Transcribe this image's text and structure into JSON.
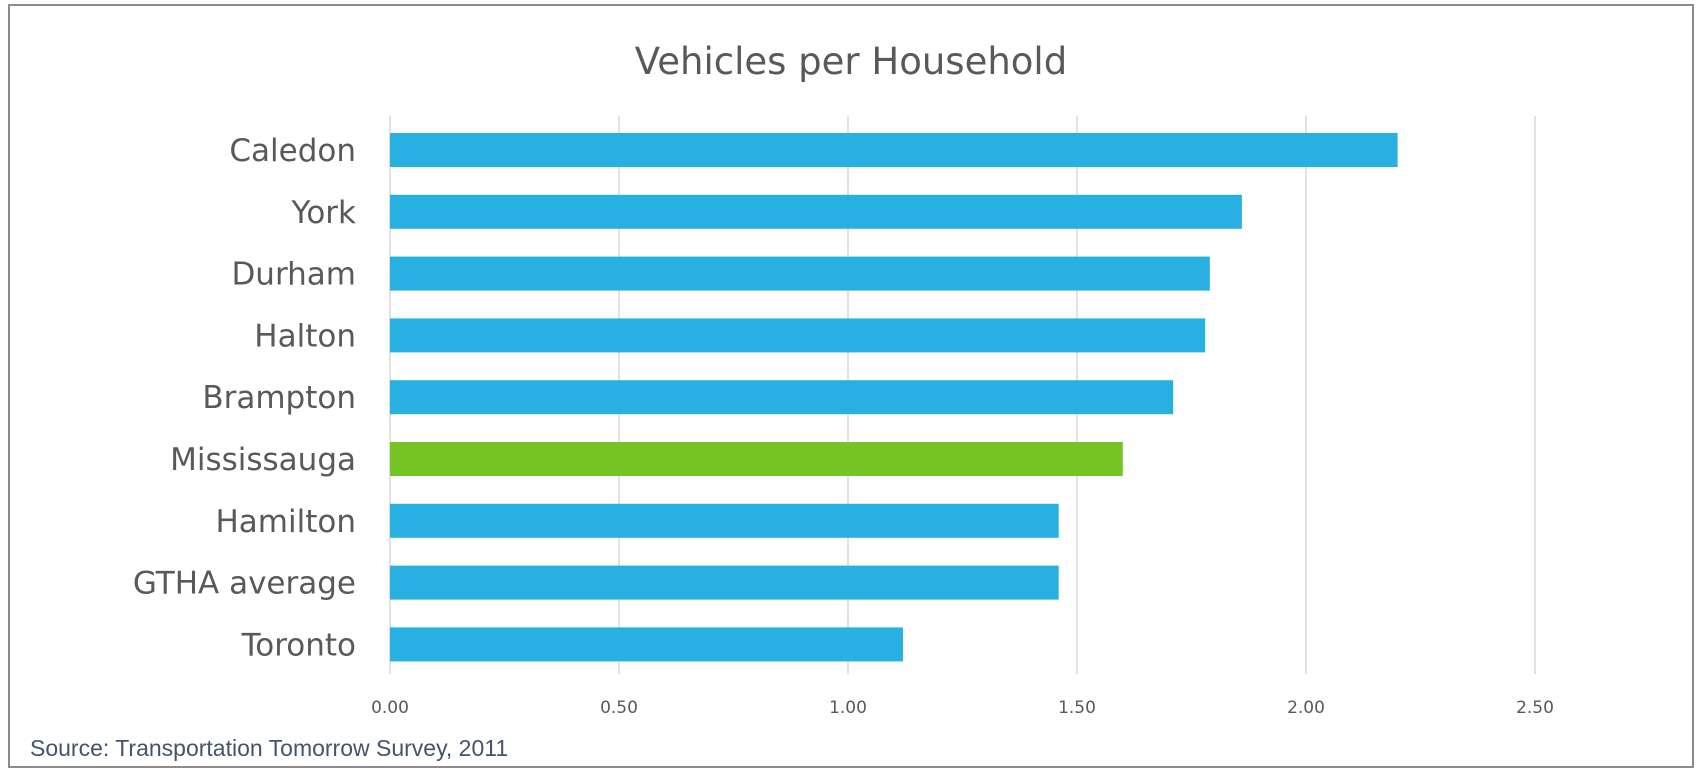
{
  "chart_data": {
    "type": "bar",
    "orientation": "horizontal",
    "title": "Vehicles per Household",
    "xlabel": "",
    "ylabel": "",
    "categories": [
      "Caledon",
      "York",
      "Durham",
      "Halton",
      "Brampton",
      "Mississauga",
      "Hamilton",
      "GTHA average",
      "Toronto"
    ],
    "values": [
      2.2,
      1.86,
      1.79,
      1.78,
      1.71,
      1.6,
      1.46,
      1.46,
      1.12
    ],
    "xlim": [
      0,
      2.75
    ],
    "xticks": [
      0,
      0.5,
      1.0,
      1.5,
      2.0,
      2.5
    ],
    "xtick_labels": [
      "0.00",
      "0.50",
      "1.00",
      "1.50",
      "2.00",
      "2.50"
    ],
    "grid": "vertical",
    "legend": "none",
    "colors": {
      "default_bar": "#29b0e2",
      "highlight_bar": "#76c424",
      "highlight_category": "Mississauga"
    }
  },
  "source": "Source: Transportation Tomorrow Survey, 2011"
}
